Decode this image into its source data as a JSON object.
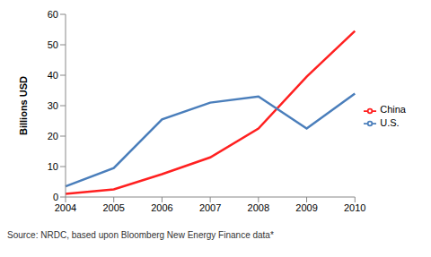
{
  "chart_data": {
    "type": "line",
    "y_label": "Billions USD",
    "categories": [
      "2004",
      "2005",
      "2006",
      "2007",
      "2008",
      "2009",
      "2010"
    ],
    "series": [
      {
        "name": "China",
        "color": "#ff2020",
        "values": [
          1,
          2.5,
          7.5,
          13,
          22.5,
          39.5,
          54.5
        ]
      },
      {
        "name": "U.S.",
        "color": "#4a7ebb",
        "values": [
          3.5,
          9.5,
          25.5,
          31,
          33,
          22.5,
          34
        ]
      }
    ],
    "ylim": [
      0,
      60
    ],
    "yticks": [
      0,
      10,
      20,
      30,
      40,
      50,
      60
    ],
    "grid": false,
    "legend": "right",
    "annotations": [
      "Source:  NRDC, based upon Bloomberg New Energy Finance data*"
    ]
  }
}
